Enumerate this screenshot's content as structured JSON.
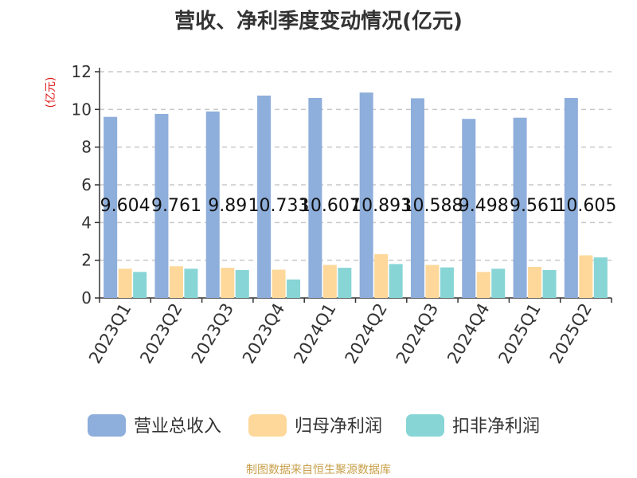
{
  "chart_data": {
    "type": "bar",
    "title": "营收、净利季度变动情况(亿元)",
    "ylabel": "(亿元)",
    "xlabel": "",
    "ylim": [
      0,
      12
    ],
    "yticks": [
      0,
      2,
      4,
      6,
      8,
      10,
      12
    ],
    "grid": true,
    "legend_position": "bottom",
    "categories": [
      "2023Q1",
      "2023Q2",
      "2023Q3",
      "2023Q4",
      "2024Q1",
      "2024Q2",
      "2024Q3",
      "2024Q4",
      "2025Q1",
      "2025Q2"
    ],
    "series": [
      {
        "name": "营业总收入",
        "color": "#8eaedb",
        "values": [
          9.604,
          9.761,
          9.89,
          10.733,
          10.607,
          10.893,
          10.588,
          9.498,
          9.561,
          10.605
        ],
        "data_labels": [
          "9.604",
          "9.761",
          "9.89",
          "10.733",
          "10.607",
          "10.893",
          "10.588",
          "9.498",
          "9.561",
          "10.605"
        ]
      },
      {
        "name": "归母净利润",
        "color": "#fdd89a",
        "values": [
          1.55,
          1.68,
          1.6,
          1.5,
          1.75,
          2.32,
          1.75,
          1.38,
          1.65,
          2.26
        ]
      },
      {
        "name": "扣非净利润",
        "color": "#88d5d6",
        "values": [
          1.38,
          1.55,
          1.48,
          0.98,
          1.6,
          1.8,
          1.62,
          1.55,
          1.48,
          2.15
        ]
      }
    ]
  },
  "source_note": "制图数据来自恒生聚源数据库"
}
